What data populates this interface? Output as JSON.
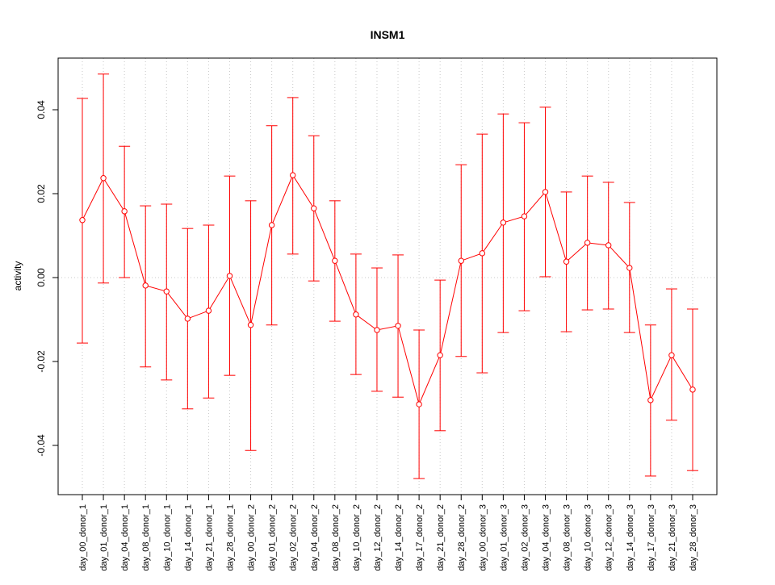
{
  "chart_data": {
    "type": "line",
    "title": "INSM1",
    "xlabel": "",
    "ylabel": "activity",
    "ylim": [
      -0.052,
      0.052
    ],
    "yticks": [
      -0.04,
      -0.02,
      0.0,
      0.02,
      0.04
    ],
    "ytick_labels": [
      "-0.04",
      "-0.02",
      "0.00",
      "0.02",
      "0.04"
    ],
    "grid": true,
    "color": "#ff0000",
    "categories": [
      "day_00_donor_1",
      "day_01_donor_1",
      "day_04_donor_1",
      "day_08_donor_1",
      "day_10_donor_1",
      "day_14_donor_1",
      "day_21_donor_1",
      "day_28_donor_1",
      "day_00_donor_2",
      "day_01_donor_2",
      "day_02_donor_2",
      "day_04_donor_2",
      "day_08_donor_2",
      "day_10_donor_2",
      "day_12_donor_2",
      "day_14_donor_2",
      "day_17_donor_2",
      "day_21_donor_2",
      "day_28_donor_2",
      "day_00_donor_3",
      "day_01_donor_3",
      "day_02_donor_3",
      "day_04_donor_3",
      "day_08_donor_3",
      "day_10_donor_3",
      "day_12_donor_3",
      "day_14_donor_3",
      "day_17_donor_3",
      "day_21_donor_3",
      "day_28_donor_3"
    ],
    "values": [
      0.0137,
      0.0237,
      0.0158,
      -0.0019,
      -0.0033,
      -0.0098,
      -0.0079,
      0.0004,
      -0.0113,
      0.0125,
      0.0244,
      0.0165,
      0.004,
      -0.0088,
      -0.0125,
      -0.0115,
      -0.0302,
      -0.0185,
      0.004,
      0.0058,
      0.0131,
      0.0146,
      0.0204,
      0.0038,
      0.0083,
      0.0077,
      0.0023,
      -0.0292,
      -0.0185,
      -0.0267
    ],
    "upper": [
      0.0427,
      0.0485,
      0.0313,
      0.0171,
      0.0175,
      0.0117,
      0.0125,
      0.0242,
      0.0183,
      0.0362,
      0.0429,
      0.0338,
      0.0183,
      0.0056,
      0.0023,
      0.0054,
      -0.0125,
      -0.0006,
      0.0269,
      0.0342,
      0.039,
      0.0369,
      0.0406,
      0.0204,
      0.0242,
      0.0227,
      0.0179,
      -0.0113,
      -0.0027,
      -0.0075
    ],
    "lower": [
      -0.0156,
      -0.0013,
      0.0,
      -0.0213,
      -0.0244,
      -0.0313,
      -0.0287,
      -0.0233,
      -0.0412,
      -0.0113,
      0.0056,
      -0.0008,
      -0.0104,
      -0.0231,
      -0.0271,
      -0.0285,
      -0.0479,
      -0.0365,
      -0.0188,
      -0.0227,
      -0.0131,
      -0.0079,
      0.0002,
      -0.0129,
      -0.0077,
      -0.0075,
      -0.0131,
      -0.0473,
      -0.034,
      -0.046
    ]
  }
}
